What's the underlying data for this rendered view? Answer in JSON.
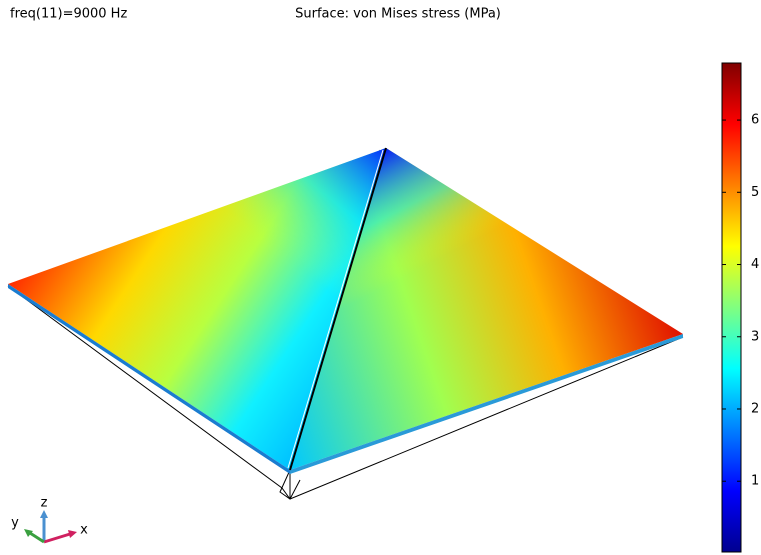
{
  "chart_data": {
    "type": "surface",
    "title": "Surface: von Mises stress (MPa)",
    "annotation": "freq(11)=9000 Hz",
    "clim": [
      0.02,
      6.79
    ],
    "cticks": [
      1,
      2,
      3,
      4,
      5,
      6
    ],
    "colormap": [
      "#00008f",
      "#0000ff",
      "#0080ff",
      "#00ffff",
      "#80ff80",
      "#ffff00",
      "#ff8000",
      "#ff0000",
      "#800000"
    ],
    "axis_triad": {
      "x": "x",
      "y": "y",
      "z": "z"
    }
  }
}
